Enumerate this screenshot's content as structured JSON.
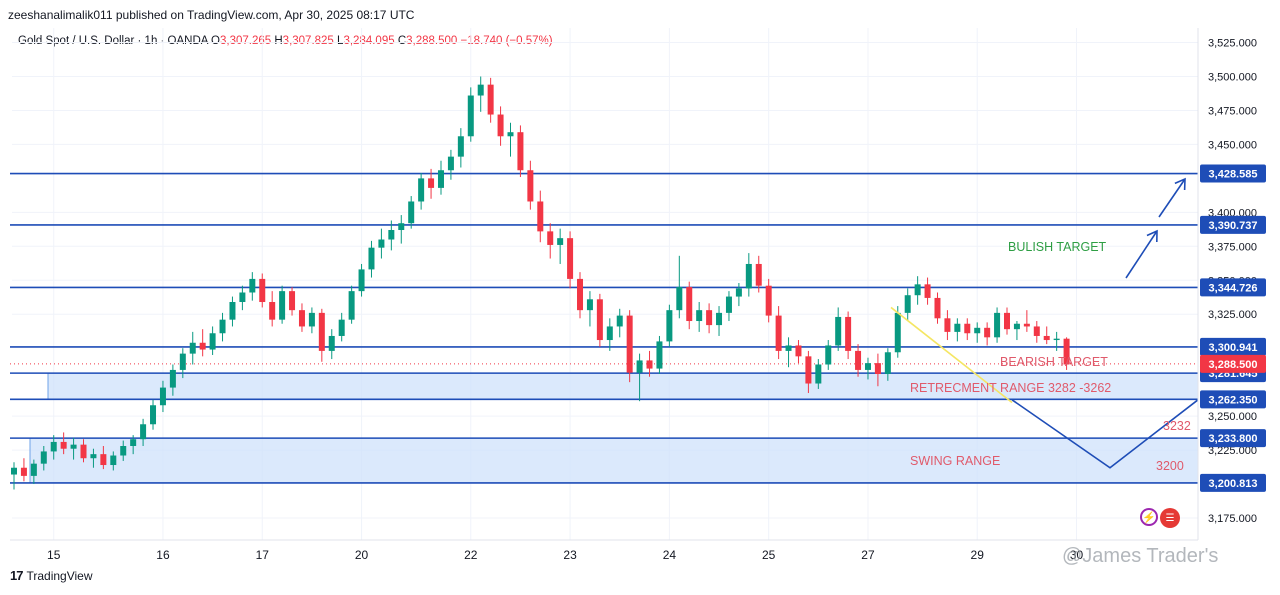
{
  "header": {
    "publisher": "zeeshanalimalik011 published on TradingView.com, Apr 30, 2025 08:17 UTC"
  },
  "symbol": {
    "title": "Gold Spot / U.S. Dollar · 1h · OANDA",
    "o_label": "O",
    "o": "3,307.265",
    "h_label": "H",
    "h": "3,307.825",
    "l_label": "L",
    "l": "3,284.095",
    "c_label": "C",
    "c": "3,288.500",
    "change": "−18.740 (−0.57%)"
  },
  "footer": {
    "brand": "TradingView",
    "logo": "17"
  },
  "watermark": "@James Trader's",
  "icons": [
    "lightning-icon",
    "us-flag-icon"
  ],
  "chart_data": {
    "type": "candlestick",
    "ylim": [
      3160,
      3530
    ],
    "y_ticks": [
      {
        "v": 3525,
        "label": "3,525.000"
      },
      {
        "v": 3500,
        "label": "3,500.000"
      },
      {
        "v": 3475,
        "label": "3,475.000"
      },
      {
        "v": 3450,
        "label": "3,450.000"
      },
      {
        "v": 3400,
        "label": "3,400.000"
      },
      {
        "v": 3375,
        "label": "3,375.000"
      },
      {
        "v": 3350,
        "label": "3,350.000"
      },
      {
        "v": 3325,
        "label": "3,325.000"
      },
      {
        "v": 3250,
        "label": "3,250.000"
      },
      {
        "v": 3225,
        "label": "3,225.000"
      },
      {
        "v": 3175,
        "label": "3,175.000"
      }
    ],
    "x_ticks": [
      {
        "i": 4,
        "label": "15"
      },
      {
        "i": 15,
        "label": "16"
      },
      {
        "i": 25,
        "label": "17"
      },
      {
        "i": 35,
        "label": "20"
      },
      {
        "i": 46,
        "label": "22"
      },
      {
        "i": 56,
        "label": "23"
      },
      {
        "i": 66,
        "label": "24"
      },
      {
        "i": 76,
        "label": "25"
      },
      {
        "i": 86,
        "label": "27"
      },
      {
        "i": 97,
        "label": "29"
      },
      {
        "i": 107,
        "label": "30"
      }
    ],
    "levels": [
      {
        "v": 3428.585,
        "label": "3,428.585",
        "color": "#1e4db7"
      },
      {
        "v": 3390.737,
        "label": "3,390.737",
        "color": "#1e4db7"
      },
      {
        "v": 3344.726,
        "label": "3,344.726",
        "color": "#1e4db7"
      },
      {
        "v": 3300.941,
        "label": "3,300.941",
        "color": "#1e4db7"
      },
      {
        "v": 3281.645,
        "label": "3,281.645",
        "color": "#1e4db7"
      },
      {
        "v": 3262.35,
        "label": "3,262.350",
        "color": "#1e4db7"
      },
      {
        "v": 3233.8,
        "label": "3,233.800",
        "color": "#1e4db7"
      },
      {
        "v": 3200.813,
        "label": "3,200.813",
        "color": "#1e4db7"
      }
    ],
    "last_price": {
      "v": 3288.5,
      "label": "3,288.500",
      "color": "#f23645"
    },
    "zones": [
      {
        "from": 3262.35,
        "to": 3281.645,
        "label": "RETRECMENT RANGE 3282 -3262"
      },
      {
        "from": 3200.813,
        "to": 3233.8,
        "label": "SWING RANGE"
      }
    ],
    "annotations": {
      "bullish": "BULISH TARGET",
      "bearish": "BEARISH TARGET",
      "label_3232": "3232",
      "label_3200": "3200"
    },
    "candles": [
      {
        "o": 3207,
        "h": 3216,
        "l": 3196,
        "c": 3212
      },
      {
        "o": 3212,
        "h": 3219,
        "l": 3202,
        "c": 3206
      },
      {
        "o": 3206,
        "h": 3218,
        "l": 3200,
        "c": 3215
      },
      {
        "o": 3215,
        "h": 3228,
        "l": 3210,
        "c": 3224
      },
      {
        "o": 3224,
        "h": 3236,
        "l": 3218,
        "c": 3231
      },
      {
        "o": 3231,
        "h": 3238,
        "l": 3222,
        "c": 3226
      },
      {
        "o": 3226,
        "h": 3234,
        "l": 3218,
        "c": 3229
      },
      {
        "o": 3229,
        "h": 3233,
        "l": 3216,
        "c": 3219
      },
      {
        "o": 3219,
        "h": 3226,
        "l": 3212,
        "c": 3222
      },
      {
        "o": 3222,
        "h": 3228,
        "l": 3211,
        "c": 3214
      },
      {
        "o": 3214,
        "h": 3224,
        "l": 3210,
        "c": 3221
      },
      {
        "o": 3221,
        "h": 3232,
        "l": 3217,
        "c": 3228
      },
      {
        "o": 3228,
        "h": 3236,
        "l": 3222,
        "c": 3233
      },
      {
        "o": 3233,
        "h": 3248,
        "l": 3228,
        "c": 3244
      },
      {
        "o": 3244,
        "h": 3262,
        "l": 3240,
        "c": 3258
      },
      {
        "o": 3258,
        "h": 3276,
        "l": 3253,
        "c": 3271
      },
      {
        "o": 3271,
        "h": 3288,
        "l": 3265,
        "c": 3284
      },
      {
        "o": 3284,
        "h": 3300,
        "l": 3278,
        "c": 3296
      },
      {
        "o": 3296,
        "h": 3312,
        "l": 3288,
        "c": 3304
      },
      {
        "o": 3304,
        "h": 3314,
        "l": 3294,
        "c": 3299
      },
      {
        "o": 3299,
        "h": 3316,
        "l": 3295,
        "c": 3311
      },
      {
        "o": 3311,
        "h": 3326,
        "l": 3305,
        "c": 3321
      },
      {
        "o": 3321,
        "h": 3338,
        "l": 3316,
        "c": 3334
      },
      {
        "o": 3334,
        "h": 3346,
        "l": 3328,
        "c": 3341
      },
      {
        "o": 3341,
        "h": 3356,
        "l": 3335,
        "c": 3351
      },
      {
        "o": 3351,
        "h": 3355,
        "l": 3330,
        "c": 3334
      },
      {
        "o": 3334,
        "h": 3342,
        "l": 3316,
        "c": 3321
      },
      {
        "o": 3321,
        "h": 3346,
        "l": 3318,
        "c": 3342
      },
      {
        "o": 3342,
        "h": 3345,
        "l": 3324,
        "c": 3328
      },
      {
        "o": 3328,
        "h": 3333,
        "l": 3312,
        "c": 3316
      },
      {
        "o": 3316,
        "h": 3330,
        "l": 3311,
        "c": 3326
      },
      {
        "o": 3326,
        "h": 3329,
        "l": 3290,
        "c": 3298
      },
      {
        "o": 3298,
        "h": 3314,
        "l": 3292,
        "c": 3309
      },
      {
        "o": 3309,
        "h": 3326,
        "l": 3305,
        "c": 3321
      },
      {
        "o": 3321,
        "h": 3346,
        "l": 3318,
        "c": 3342
      },
      {
        "o": 3342,
        "h": 3362,
        "l": 3338,
        "c": 3358
      },
      {
        "o": 3358,
        "h": 3379,
        "l": 3352,
        "c": 3374
      },
      {
        "o": 3374,
        "h": 3388,
        "l": 3366,
        "c": 3380
      },
      {
        "o": 3380,
        "h": 3394,
        "l": 3372,
        "c": 3387
      },
      {
        "o": 3387,
        "h": 3398,
        "l": 3377,
        "c": 3392
      },
      {
        "o": 3392,
        "h": 3412,
        "l": 3388,
        "c": 3408
      },
      {
        "o": 3408,
        "h": 3429,
        "l": 3402,
        "c": 3425
      },
      {
        "o": 3425,
        "h": 3432,
        "l": 3410,
        "c": 3418
      },
      {
        "o": 3418,
        "h": 3438,
        "l": 3413,
        "c": 3431
      },
      {
        "o": 3431,
        "h": 3446,
        "l": 3424,
        "c": 3441
      },
      {
        "o": 3441,
        "h": 3462,
        "l": 3433,
        "c": 3456
      },
      {
        "o": 3456,
        "h": 3492,
        "l": 3452,
        "c": 3486
      },
      {
        "o": 3486,
        "h": 3500,
        "l": 3474,
        "c": 3494
      },
      {
        "o": 3494,
        "h": 3499,
        "l": 3466,
        "c": 3472
      },
      {
        "o": 3472,
        "h": 3478,
        "l": 3449,
        "c": 3456
      },
      {
        "o": 3456,
        "h": 3466,
        "l": 3441,
        "c": 3459
      },
      {
        "o": 3459,
        "h": 3464,
        "l": 3426,
        "c": 3431
      },
      {
        "o": 3431,
        "h": 3438,
        "l": 3402,
        "c": 3408
      },
      {
        "o": 3408,
        "h": 3416,
        "l": 3378,
        "c": 3386
      },
      {
        "o": 3386,
        "h": 3392,
        "l": 3366,
        "c": 3376
      },
      {
        "o": 3376,
        "h": 3388,
        "l": 3362,
        "c": 3381
      },
      {
        "o": 3381,
        "h": 3386,
        "l": 3344,
        "c": 3351
      },
      {
        "o": 3351,
        "h": 3356,
        "l": 3322,
        "c": 3328
      },
      {
        "o": 3328,
        "h": 3342,
        "l": 3316,
        "c": 3336
      },
      {
        "o": 3336,
        "h": 3340,
        "l": 3301,
        "c": 3306
      },
      {
        "o": 3306,
        "h": 3322,
        "l": 3298,
        "c": 3316
      },
      {
        "o": 3316,
        "h": 3329,
        "l": 3308,
        "c": 3324
      },
      {
        "o": 3324,
        "h": 3328,
        "l": 3275,
        "c": 3282
      },
      {
        "o": 3282,
        "h": 3296,
        "l": 3261,
        "c": 3291
      },
      {
        "o": 3291,
        "h": 3298,
        "l": 3279,
        "c": 3285
      },
      {
        "o": 3285,
        "h": 3309,
        "l": 3281,
        "c": 3305
      },
      {
        "o": 3305,
        "h": 3332,
        "l": 3301,
        "c": 3328
      },
      {
        "o": 3328,
        "h": 3368,
        "l": 3322,
        "c": 3345
      },
      {
        "o": 3345,
        "h": 3349,
        "l": 3314,
        "c": 3320
      },
      {
        "o": 3320,
        "h": 3334,
        "l": 3312,
        "c": 3328
      },
      {
        "o": 3328,
        "h": 3333,
        "l": 3311,
        "c": 3317
      },
      {
        "o": 3317,
        "h": 3331,
        "l": 3309,
        "c": 3326
      },
      {
        "o": 3326,
        "h": 3342,
        "l": 3320,
        "c": 3338
      },
      {
        "o": 3338,
        "h": 3348,
        "l": 3331,
        "c": 3344
      },
      {
        "o": 3344,
        "h": 3370,
        "l": 3338,
        "c": 3362
      },
      {
        "o": 3362,
        "h": 3368,
        "l": 3341,
        "c": 3346
      },
      {
        "o": 3346,
        "h": 3351,
        "l": 3319,
        "c": 3324
      },
      {
        "o": 3324,
        "h": 3331,
        "l": 3292,
        "c": 3298
      },
      {
        "o": 3298,
        "h": 3308,
        "l": 3286,
        "c": 3302
      },
      {
        "o": 3302,
        "h": 3306,
        "l": 3289,
        "c": 3294
      },
      {
        "o": 3294,
        "h": 3298,
        "l": 3267,
        "c": 3274
      },
      {
        "o": 3274,
        "h": 3292,
        "l": 3270,
        "c": 3288
      },
      {
        "o": 3288,
        "h": 3306,
        "l": 3284,
        "c": 3302
      },
      {
        "o": 3302,
        "h": 3330,
        "l": 3298,
        "c": 3323
      },
      {
        "o": 3323,
        "h": 3327,
        "l": 3292,
        "c": 3298
      },
      {
        "o": 3298,
        "h": 3303,
        "l": 3279,
        "c": 3284
      },
      {
        "o": 3284,
        "h": 3293,
        "l": 3277,
        "c": 3289
      },
      {
        "o": 3289,
        "h": 3296,
        "l": 3272,
        "c": 3281
      },
      {
        "o": 3281,
        "h": 3300,
        "l": 3276,
        "c": 3297
      },
      {
        "o": 3297,
        "h": 3331,
        "l": 3293,
        "c": 3326
      },
      {
        "o": 3326,
        "h": 3344,
        "l": 3320,
        "c": 3339
      },
      {
        "o": 3339,
        "h": 3353,
        "l": 3332,
        "c": 3347
      },
      {
        "o": 3347,
        "h": 3352,
        "l": 3332,
        "c": 3337
      },
      {
        "o": 3337,
        "h": 3341,
        "l": 3318,
        "c": 3322
      },
      {
        "o": 3322,
        "h": 3328,
        "l": 3306,
        "c": 3312
      },
      {
        "o": 3312,
        "h": 3322,
        "l": 3305,
        "c": 3318
      },
      {
        "o": 3318,
        "h": 3322,
        "l": 3306,
        "c": 3311
      },
      {
        "o": 3311,
        "h": 3319,
        "l": 3304,
        "c": 3315
      },
      {
        "o": 3315,
        "h": 3319,
        "l": 3302,
        "c": 3308
      },
      {
        "o": 3308,
        "h": 3330,
        "l": 3304,
        "c": 3326
      },
      {
        "o": 3326,
        "h": 3330,
        "l": 3310,
        "c": 3314
      },
      {
        "o": 3314,
        "h": 3320,
        "l": 3306,
        "c": 3318
      },
      {
        "o": 3318,
        "h": 3328,
        "l": 3312,
        "c": 3316
      },
      {
        "o": 3316,
        "h": 3320,
        "l": 3304,
        "c": 3309
      },
      {
        "o": 3309,
        "h": 3316,
        "l": 3303,
        "c": 3306
      },
      {
        "o": 3306,
        "h": 3312,
        "l": 3298,
        "c": 3307
      },
      {
        "o": 3307,
        "h": 3308,
        "l": 3284,
        "c": 3288
      }
    ]
  }
}
